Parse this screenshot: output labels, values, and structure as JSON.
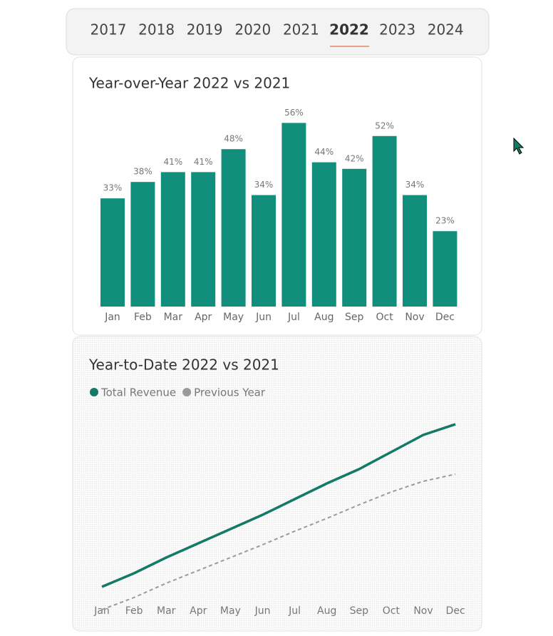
{
  "tabs": {
    "years": [
      "2017",
      "2018",
      "2019",
      "2020",
      "2021",
      "2022",
      "2023",
      "2024"
    ],
    "selected": "2022"
  },
  "chart_data": [
    {
      "type": "bar",
      "title": "Year-over-Year 2022 vs 2021",
      "categories": [
        "Jan",
        "Feb",
        "Mar",
        "Apr",
        "May",
        "Jun",
        "Jul",
        "Aug",
        "Sep",
        "Oct",
        "Nov",
        "Dec"
      ],
      "values": [
        33,
        38,
        41,
        41,
        48,
        34,
        56,
        44,
        42,
        52,
        34,
        23
      ],
      "value_labels": [
        "33%",
        "38%",
        "41%",
        "41%",
        "48%",
        "34%",
        "56%",
        "44%",
        "42%",
        "52%",
        "34%",
        "23%"
      ],
      "color": "#118f7c"
    },
    {
      "type": "line",
      "title": "Year-to-Date 2022 vs 2021",
      "categories": [
        "Jan",
        "Feb",
        "Mar",
        "Apr",
        "May",
        "Jun",
        "Jul",
        "Aug",
        "Sep",
        "Oct",
        "Nov",
        "Dec"
      ],
      "legend": "top-left",
      "series": [
        {
          "name": "Total Revenue",
          "color": "#137a68",
          "dashed": false,
          "values": [
            128,
            147,
            169,
            189,
            209,
            229,
            251,
            273,
            293,
            317,
            341,
            356
          ]
        },
        {
          "name": "Previous Year",
          "color": "#9a9a9a",
          "dashed": true,
          "values": [
            96,
            113,
            133,
            151,
            169,
            187,
            206,
            224,
            243,
            261,
            276,
            286
          ]
        }
      ]
    }
  ]
}
